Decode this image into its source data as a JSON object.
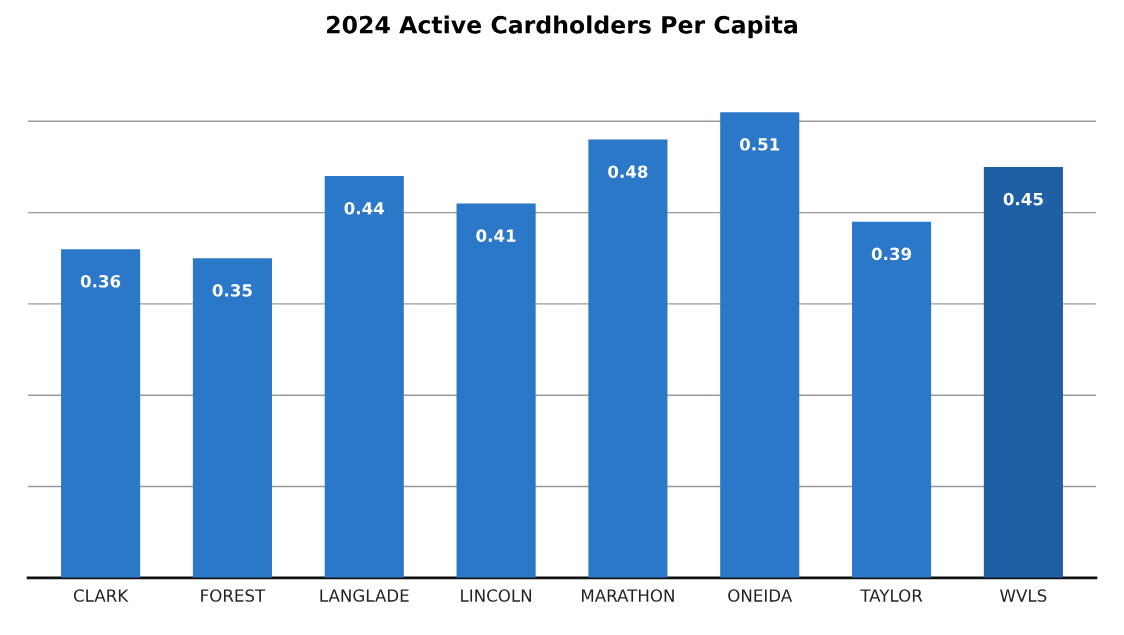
{
  "chart_data": {
    "type": "bar",
    "title": "2024 Active Cardholders Per Capita",
    "categories": [
      "CLARK",
      "FOREST",
      "LANGLADE",
      "LINCOLN",
      "MARATHON",
      "ONEIDA",
      "TAYLOR",
      "WVLS"
    ],
    "values": [
      0.36,
      0.35,
      0.44,
      0.41,
      0.48,
      0.51,
      0.39,
      0.45
    ],
    "colors": [
      "#2b78c8",
      "#2b78c8",
      "#2b78c8",
      "#2b78c8",
      "#2b78c8",
      "#2b78c8",
      "#2b78c8",
      "#1f5fa6"
    ],
    "yticks": [
      {
        "value": 0,
        "label": null
      },
      {
        "value": 0.1,
        "label": null
      },
      {
        "value": 0.2,
        "label": null
      },
      {
        "value": 0.3,
        "label": null
      },
      {
        "value": 0.4,
        "label": null
      },
      {
        "value": 0.5,
        "label": null
      }
    ],
    "tick_labels": "x",
    "grid": "y",
    "data_labels": true
  }
}
